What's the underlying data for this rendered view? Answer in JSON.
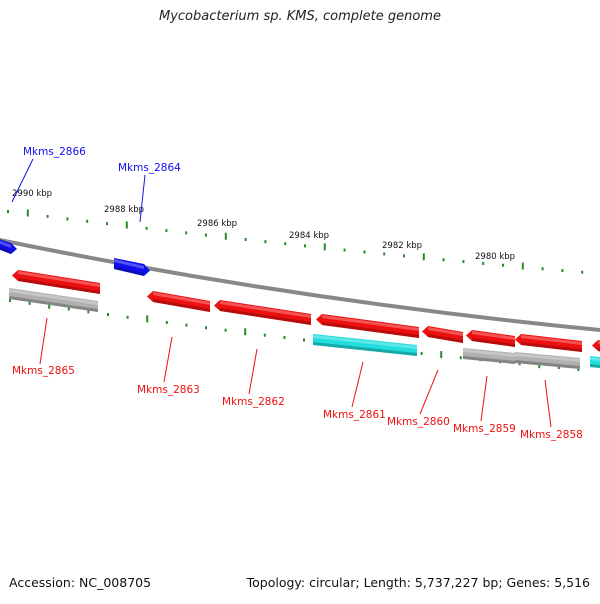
{
  "title": "Mycobacterium sp. KMS, complete genome",
  "footer": {
    "accession": "Accession: NC_008705",
    "summary": "Topology: circular; Length: 5,737,227 bp; Genes: 5,516"
  },
  "colors": {
    "backbone": "#888888",
    "tick": "#2a8a2a",
    "tick_label": "#111111",
    "forward_gene": "#1010ee",
    "reverse_gene": "#ee1010",
    "rna_gene": "#22dddd",
    "other_gene": "#b0b0b0"
  },
  "tick_labels": [
    "2990 kbp",
    "2988 kbp",
    "2986 kbp",
    "2984 kbp",
    "2982 kbp",
    "2980 kbp"
  ],
  "forward_gene_labels": [
    "Mkms_2866",
    "Mkms_2864"
  ],
  "reverse_gene_labels": [
    "Mkms_2865",
    "Mkms_2863",
    "Mkms_2862",
    "Mkms_2861",
    "Mkms_2860",
    "Mkms_2859",
    "Mkms_2858"
  ]
}
